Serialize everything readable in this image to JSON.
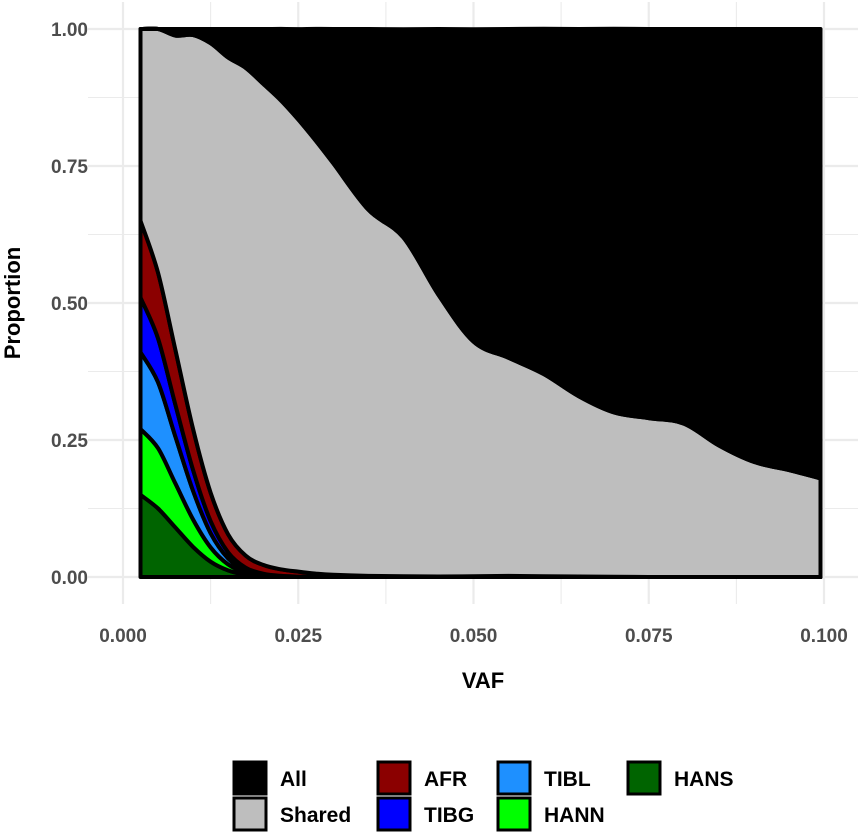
{
  "chart_data": {
    "type": "area",
    "stacked": true,
    "xlabel": "VAF",
    "ylabel": "Proportion",
    "xlim": [
      0.0,
      0.1
    ],
    "ylim": [
      0.0,
      1.0
    ],
    "x_ticks": [
      "0.000",
      "0.025",
      "0.050",
      "0.075",
      "0.100"
    ],
    "y_ticks": [
      "0.00",
      "0.25",
      "0.50",
      "0.75",
      "1.00"
    ],
    "grid": true,
    "legend_position": "bottom",
    "x": [
      0.0025,
      0.005,
      0.0075,
      0.01,
      0.0125,
      0.015,
      0.0175,
      0.02,
      0.0225,
      0.025,
      0.0275,
      0.03,
      0.035,
      0.04,
      0.045,
      0.05,
      0.055,
      0.06,
      0.065,
      0.07,
      0.075,
      0.08,
      0.085,
      0.09,
      0.095,
      0.0995
    ],
    "series": [
      {
        "name": "HANS",
        "color": "#006400",
        "values": [
          0.15,
          0.125,
          0.09,
          0.055,
          0.028,
          0.012,
          0.004,
          0.001,
          0.0003,
          0.0001,
          0,
          0,
          0,
          0,
          0,
          0,
          0,
          0,
          0,
          0,
          0,
          0,
          0,
          0,
          0,
          0
        ]
      },
      {
        "name": "HANN",
        "color": "#00ff00",
        "values": [
          0.12,
          0.11,
          0.08,
          0.05,
          0.026,
          0.011,
          0.004,
          0.0015,
          0.0005,
          0.0002,
          0,
          0,
          0,
          0,
          0,
          0,
          0,
          0,
          0,
          0,
          0,
          0,
          0,
          0,
          0,
          0
        ]
      },
      {
        "name": "TIBL",
        "color": "#1e90ff",
        "values": [
          0.14,
          0.12,
          0.085,
          0.052,
          0.026,
          0.011,
          0.004,
          0.0015,
          0.0005,
          0.0002,
          0.0001,
          0,
          0,
          0,
          0,
          0,
          0,
          0,
          0,
          0,
          0,
          0,
          0,
          0,
          0,
          0
        ]
      },
      {
        "name": "TIBG",
        "color": "#0000ff",
        "values": [
          0.1,
          0.08,
          0.058,
          0.038,
          0.022,
          0.011,
          0.005,
          0.002,
          0.0008,
          0.0003,
          0.0001,
          0,
          0,
          0,
          0,
          0,
          0,
          0,
          0,
          0,
          0,
          0,
          0,
          0,
          0,
          0
        ]
      },
      {
        "name": "AFR",
        "color": "#8b0000",
        "values": [
          0.14,
          0.12,
          0.1,
          0.075,
          0.052,
          0.033,
          0.022,
          0.016,
          0.012,
          0.009,
          0.006,
          0.004,
          0.002,
          0.0015,
          0.001,
          0.0015,
          0.002,
          0.0015,
          0.001,
          0.0005,
          0,
          0,
          0,
          0,
          0,
          0
        ]
      },
      {
        "name": "Shared",
        "color": "#bebebe",
        "values": [
          0.35,
          0.445,
          0.575,
          0.719,
          0.82,
          0.87,
          0.89,
          0.878,
          0.856,
          0.825,
          0.79,
          0.751,
          0.668,
          0.618,
          0.514,
          0.428,
          0.398,
          0.369,
          0.329,
          0.3,
          0.29,
          0.28,
          0.24,
          0.21,
          0.195,
          0.18
        ]
      },
      {
        "name": "All",
        "color": "#000000",
        "values": [
          0,
          0,
          0.012,
          0.011,
          0.026,
          0.052,
          0.071,
          0.1,
          0.13,
          0.165,
          0.204,
          0.245,
          0.33,
          0.38,
          0.485,
          0.57,
          0.6,
          0.63,
          0.67,
          0.7,
          0.71,
          0.72,
          0.76,
          0.79,
          0.805,
          0.82
        ]
      }
    ],
    "legend": {
      "columns": [
        [
          {
            "name": "All",
            "color": "#000000"
          },
          {
            "name": "Shared",
            "color": "#bebebe"
          }
        ],
        [
          {
            "name": "AFR",
            "color": "#8b0000"
          },
          {
            "name": "TIBG",
            "color": "#0000ff"
          }
        ],
        [
          {
            "name": "TIBL",
            "color": "#1e90ff"
          },
          {
            "name": "HANN",
            "color": "#00ff00"
          }
        ],
        [
          {
            "name": "HANS",
            "color": "#006400"
          }
        ]
      ]
    }
  }
}
